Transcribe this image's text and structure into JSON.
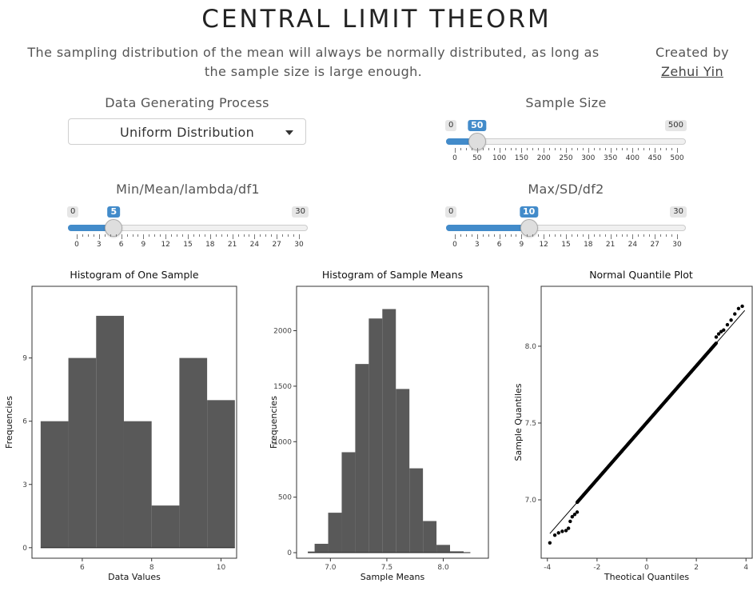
{
  "header": {
    "title": "CENTRAL LIMIT THEORM",
    "subtitle": "The sampling distribution of the mean will always be normally distributed, as long as the sample size is large enough.",
    "created_by": "Created by",
    "author": "Zehui Yin"
  },
  "controls": {
    "dgp": {
      "label": "Data Generating Process",
      "value": "Uniform Distribution"
    },
    "sample_size": {
      "label": "Sample Size",
      "min": 0,
      "max": 500,
      "value": 50,
      "ticks": [
        "0",
        "50",
        "100",
        "150",
        "200",
        "250",
        "300",
        "350",
        "400",
        "450",
        "500"
      ]
    },
    "param1": {
      "label": "Min/Mean/lambda/df1",
      "min": 0,
      "max": 30,
      "value": 5,
      "ticks": [
        "0",
        "3",
        "6",
        "9",
        "12",
        "15",
        "18",
        "21",
        "24",
        "27",
        "30"
      ]
    },
    "param2": {
      "label": "Max/SD/df2",
      "min": 0,
      "max": 30,
      "value": 10,
      "ticks": [
        "0",
        "3",
        "6",
        "9",
        "12",
        "15",
        "18",
        "21",
        "24",
        "27",
        "30"
      ]
    }
  },
  "colors": {
    "accent": "#428bca",
    "bar": "#595959"
  },
  "chart_data": [
    {
      "type": "bar",
      "title": "Histogram of One Sample",
      "xlabel": "Data Values",
      "ylabel": "Frequencies",
      "xlim": [
        4.55,
        10.45
      ],
      "ylim": [
        -0.5,
        12.4
      ],
      "xticks": [
        6,
        8,
        10
      ],
      "yticks": [
        0,
        3,
        6,
        9
      ],
      "bins": [
        {
          "x0": 4.8,
          "x1": 5.6,
          "count": 6
        },
        {
          "x0": 5.6,
          "x1": 6.4,
          "count": 9
        },
        {
          "x0": 6.4,
          "x1": 7.2,
          "count": 11
        },
        {
          "x0": 7.2,
          "x1": 8.0,
          "count": 6
        },
        {
          "x0": 8.0,
          "x1": 8.8,
          "count": 2
        },
        {
          "x0": 8.8,
          "x1": 9.6,
          "count": 9
        },
        {
          "x0": 9.6,
          "x1": 10.4,
          "count": 7
        }
      ]
    },
    {
      "type": "bar",
      "title": "Histogram of Sample Means",
      "xlabel": "Sample Means",
      "ylabel": "Frequencies",
      "xlim": [
        6.7,
        8.4
      ],
      "ylim": [
        -50,
        2400
      ],
      "xticks": [
        7.0,
        7.5,
        8.0
      ],
      "yticks": [
        0,
        500,
        1000,
        1500,
        2000
      ],
      "bins": [
        {
          "x0": 6.8,
          "x1": 6.86,
          "count": 10
        },
        {
          "x0": 6.86,
          "x1": 6.98,
          "count": 80
        },
        {
          "x0": 6.98,
          "x1": 7.1,
          "count": 360
        },
        {
          "x0": 7.1,
          "x1": 7.22,
          "count": 905
        },
        {
          "x0": 7.22,
          "x1": 7.34,
          "count": 1700
        },
        {
          "x0": 7.34,
          "x1": 7.46,
          "count": 2110
        },
        {
          "x0": 7.46,
          "x1": 7.58,
          "count": 2195
        },
        {
          "x0": 7.58,
          "x1": 7.7,
          "count": 1475
        },
        {
          "x0": 7.7,
          "x1": 7.82,
          "count": 760
        },
        {
          "x0": 7.82,
          "x1": 7.94,
          "count": 285
        },
        {
          "x0": 7.94,
          "x1": 8.06,
          "count": 70
        },
        {
          "x0": 8.06,
          "x1": 8.18,
          "count": 12
        },
        {
          "x0": 8.18,
          "x1": 8.24,
          "count": 3
        }
      ]
    },
    {
      "type": "scatter",
      "title": "Normal Quantile Plot",
      "xlabel": "Theotical Quantiles",
      "ylabel": "Sample Quantiles",
      "xlim": [
        -4.25,
        4.25
      ],
      "ylim": [
        6.62,
        8.39
      ],
      "xticks": [
        -4,
        -2,
        0,
        2,
        4
      ],
      "yticks": [
        7.0,
        7.5,
        8.0
      ],
      "reference_line": {
        "slope": 0.185,
        "intercept": 7.502
      },
      "points": [
        [
          -3.9,
          6.72
        ],
        [
          -3.7,
          6.77
        ],
        [
          -3.55,
          6.785
        ],
        [
          -3.4,
          6.795
        ],
        [
          -3.25,
          6.8
        ],
        [
          -3.15,
          6.815
        ],
        [
          -3.08,
          6.86
        ],
        [
          -3.0,
          6.89
        ],
        [
          -2.9,
          6.905
        ],
        [
          -2.8,
          6.92
        ],
        [
          2.8,
          8.06
        ],
        [
          2.9,
          8.08
        ],
        [
          3.0,
          8.095
        ],
        [
          3.1,
          8.105
        ],
        [
          3.25,
          8.14
        ],
        [
          3.4,
          8.17
        ],
        [
          3.55,
          8.21
        ],
        [
          3.7,
          8.245
        ],
        [
          3.85,
          8.26
        ]
      ]
    }
  ]
}
